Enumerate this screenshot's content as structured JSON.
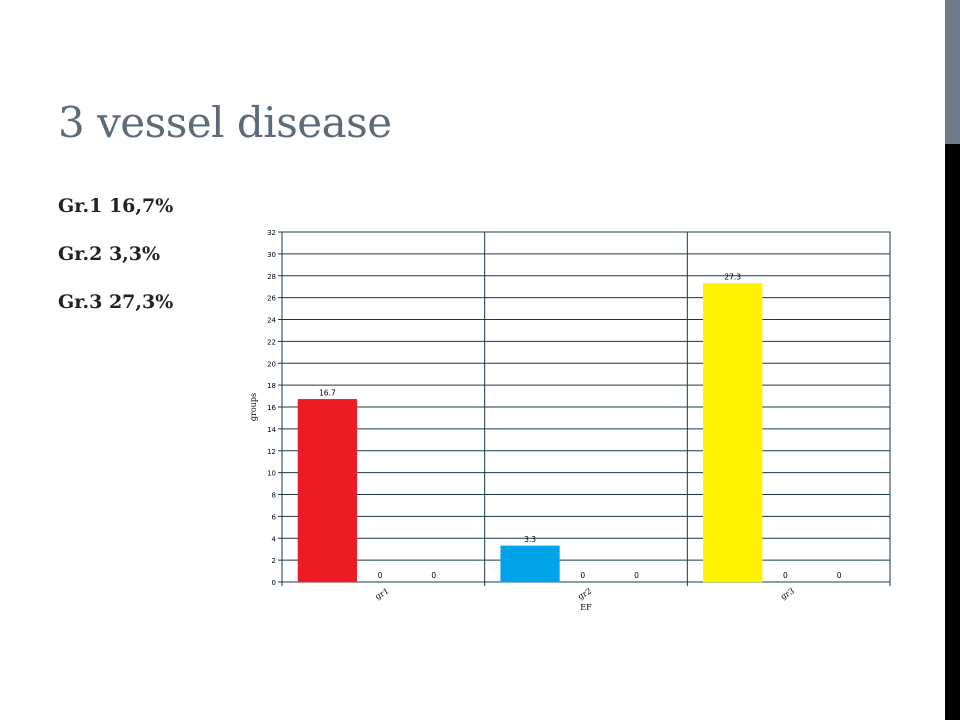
{
  "slide": {
    "title": "3 vessel disease",
    "bullets": [
      "Gr.1 16,7%",
      "Gr.2 3,3%",
      "Gr.3 27,3%"
    ]
  },
  "colors": {
    "title": "#5d6b79",
    "sidebar": "#000000",
    "sidebar_accent": "#6f7b86",
    "grid": "#1a3a4a",
    "bar_gr1": "#ed1c24",
    "bar_gr2": "#00a2e8",
    "bar_gr3": "#fff200"
  },
  "chart_data": {
    "type": "bar",
    "xlabel": "EF",
    "ylabel": "groups",
    "ylim": [
      0,
      32
    ],
    "ytick_step": 2,
    "grid": true,
    "categories": [
      "gr1",
      "gr2",
      "gr3"
    ],
    "bars_per_category": 3,
    "series": [
      {
        "values": [
          16.7,
          3.3,
          27.3
        ],
        "labels": [
          "16.7",
          "3.3",
          "27.3"
        ],
        "colors": [
          "#ed1c24",
          "#00a2e8",
          "#fff200"
        ]
      },
      {
        "values": [
          0,
          0,
          0
        ],
        "labels": [
          "0",
          "0",
          "0"
        ]
      },
      {
        "values": [
          0,
          0,
          0
        ],
        "labels": [
          "0",
          "0",
          "0"
        ]
      }
    ]
  }
}
